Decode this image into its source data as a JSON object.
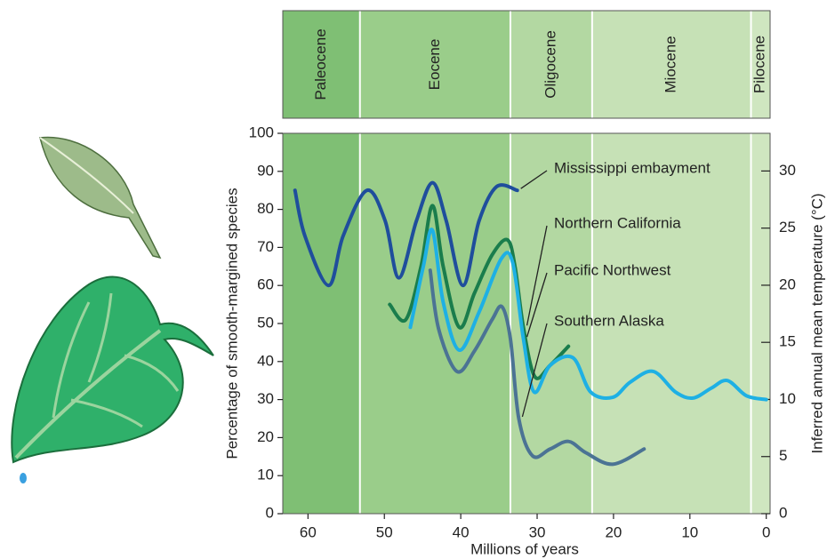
{
  "chart_data": {
    "type": "line",
    "xlabel": "Millions of years",
    "ylabel": "Percentage of smooth-margined species",
    "y2label": "Inferred annual mean temperature (°C)",
    "xlim": [
      63.3,
      -0.5
    ],
    "ylim": [
      0,
      100
    ],
    "y2lim": [
      0,
      33.3
    ],
    "xticks": [
      60,
      50,
      40,
      30,
      20,
      10,
      0
    ],
    "yticks": [
      0,
      10,
      20,
      30,
      40,
      50,
      60,
      70,
      80,
      90,
      100
    ],
    "y2ticks": [
      0,
      5,
      10,
      15,
      20,
      25,
      30
    ],
    "periods": [
      {
        "name": "Paleocene",
        "start": 63.3,
        "end": 53.2,
        "color": "#7fbf74"
      },
      {
        "name": "Eocene",
        "start": 53.2,
        "end": 33.5,
        "color": "#9acd8a"
      },
      {
        "name": "Oligocene",
        "start": 33.5,
        "end": 22.8,
        "color": "#b3d8a2"
      },
      {
        "name": "Miocene",
        "start": 22.8,
        "end": 2.0,
        "color": "#c6e1b6"
      },
      {
        "name": "Pilocene",
        "start": 2.0,
        "end": -0.5,
        "color": "#cfe6c0"
      }
    ],
    "series": [
      {
        "name": "Mississippi embayment",
        "color": "#1f4e9c",
        "x": [
          61.7,
          60.4,
          57.3,
          55.4,
          52.3,
          49.9,
          48.1,
          45.8,
          43.7,
          41.9,
          39.7,
          37.6,
          35.3,
          32.6
        ],
        "values": [
          85,
          73,
          60,
          73,
          85,
          77,
          62,
          77,
          87,
          77,
          60,
          77,
          86,
          85
        ]
      },
      {
        "name": "Northern California",
        "color": "#1a7d4c",
        "x": [
          49.3,
          47.2,
          45.2,
          43.7,
          42.3,
          40.2,
          38.2,
          35.9,
          33.9,
          32.9,
          31.8,
          30.3,
          28.3,
          25.9
        ],
        "values": [
          55,
          51,
          65,
          81,
          65,
          49,
          58,
          68,
          72,
          65,
          49,
          36,
          39,
          44
        ]
      },
      {
        "name": "Pacific Northwest",
        "color": "#1eb0e4",
        "x": [
          46.6,
          44.9,
          43.7,
          42.3,
          40.2,
          37.6,
          34.7,
          33.2,
          31.8,
          30.4,
          28.3,
          25.3,
          23.0,
          20.1,
          17.8,
          14.8,
          11.9,
          9.6,
          7.2,
          5.1,
          2.6,
          0
        ],
        "values": [
          49,
          65,
          74.5,
          55.6,
          43,
          53,
          67,
          66,
          46,
          32,
          39,
          41,
          32,
          30.6,
          34.6,
          37.4,
          32,
          30.4,
          33,
          35,
          31,
          30
        ]
      },
      {
        "name": "Southern Alaska",
        "color": "#4b7394",
        "x": [
          44.0,
          42.9,
          40.5,
          38.2,
          35.9,
          34.6,
          33.5,
          32.4,
          30.6,
          28.3,
          25.9,
          23.6,
          20.1,
          16.0
        ],
        "values": [
          64,
          48.6,
          37.4,
          42.8,
          51,
          54.4,
          46,
          25,
          15.2,
          17,
          19,
          16,
          13,
          17
        ]
      }
    ]
  }
}
